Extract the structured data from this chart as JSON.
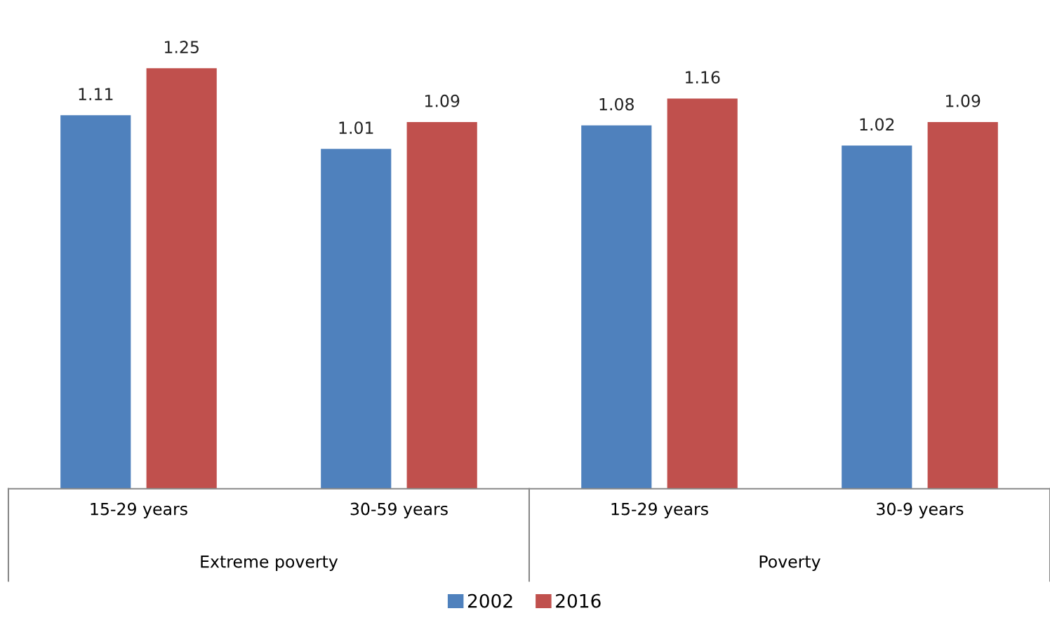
{
  "chart_data": {
    "type": "bar",
    "categories": [
      "15-29 years",
      "30-59 years",
      "15-29 years",
      "30-9 years"
    ],
    "series": [
      {
        "name": "2002",
        "color": "#4f81bd",
        "values": [
          1.11,
          1.01,
          1.08,
          1.02
        ]
      },
      {
        "name": "2016",
        "color": "#c0504d",
        "values": [
          1.25,
          1.09,
          1.16,
          1.09
        ]
      }
    ],
    "data_labels": true,
    "tick_labels": "x",
    "legend": "bottom",
    "grid": false,
    "annotations": [
      "Extreme poverty",
      "Poverty"
    ]
  }
}
